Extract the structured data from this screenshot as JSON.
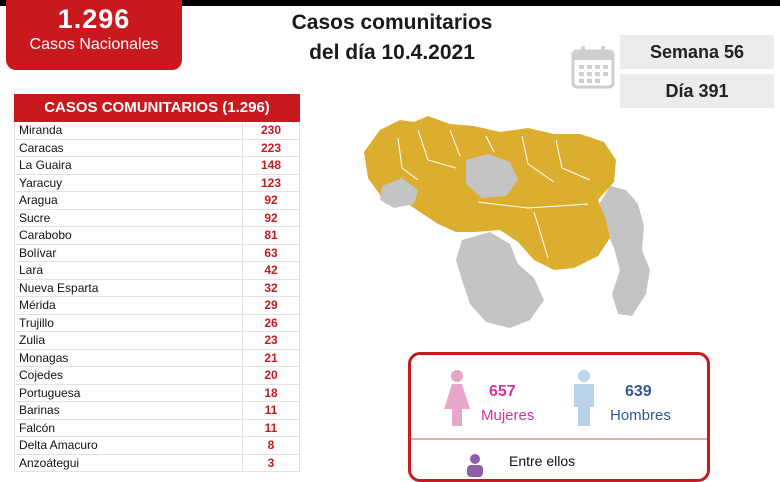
{
  "national": {
    "count": "1.296",
    "label": "Casos Nacionales"
  },
  "title": {
    "line1": "Casos comunitarios",
    "line2": "del día 10.4.2021"
  },
  "week_label": "Semana 56",
  "day_label": "Día 391",
  "table": {
    "header": "CASOS COMUNITARIOS (1.296)",
    "rows": [
      {
        "state": "Miranda",
        "cases": "230"
      },
      {
        "state": "Caracas",
        "cases": "223"
      },
      {
        "state": "La Guaira",
        "cases": "148"
      },
      {
        "state": "Yaracuy",
        "cases": "123"
      },
      {
        "state": "Aragua",
        "cases": "92"
      },
      {
        "state": "Sucre",
        "cases": "92"
      },
      {
        "state": "Carabobo",
        "cases": "81"
      },
      {
        "state": "Bolívar",
        "cases": "63"
      },
      {
        "state": "Lara",
        "cases": "42"
      },
      {
        "state": "Nueva Esparta",
        "cases": "32"
      },
      {
        "state": "Mérida",
        "cases": "29"
      },
      {
        "state": "Trujillo",
        "cases": "26"
      },
      {
        "state": "Zulia",
        "cases": "23"
      },
      {
        "state": "Monagas",
        "cases": "21"
      },
      {
        "state": "Cojedes",
        "cases": "20"
      },
      {
        "state": "Portuguesa",
        "cases": "18"
      },
      {
        "state": "Barinas",
        "cases": "11"
      },
      {
        "state": "Falcón",
        "cases": "11"
      },
      {
        "state": "Delta Amacuro",
        "cases": "8"
      },
      {
        "state": "Anzoátegui",
        "cases": "3"
      }
    ]
  },
  "gender": {
    "women_count": "657",
    "women_label": "Mujeres",
    "men_count": "639",
    "men_label": "Hombres",
    "entre_label": "Entre ellos"
  },
  "colors": {
    "brand_red": "#c8191e",
    "map_affected": "#dcae2f",
    "map_unaffected": "#c4c4c4",
    "women": "#e8a7c8",
    "men": "#b9d3ea"
  },
  "icons": [
    "calendar-icon",
    "woman-figure-icon",
    "man-figure-icon",
    "person-icon"
  ]
}
